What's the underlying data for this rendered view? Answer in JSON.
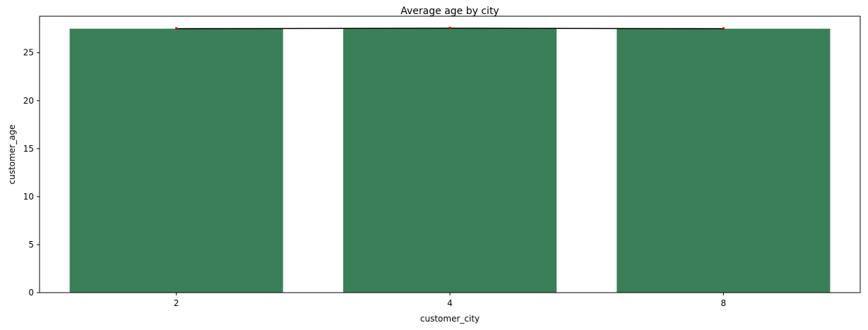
{
  "chart_data": {
    "type": "bar",
    "title": "Average age by city",
    "xlabel": "customer_city",
    "ylabel": "customer_age",
    "categories": [
      "2",
      "4",
      "8"
    ],
    "values": [
      27.5,
      27.55,
      27.5
    ],
    "line": {
      "values": [
        27.5,
        27.55,
        27.5
      ]
    },
    "error_bars": {
      "low": [
        27.4,
        27.45,
        27.4
      ],
      "high": [
        27.65,
        27.7,
        27.65
      ]
    },
    "yticks": [
      0,
      5,
      10,
      15,
      20,
      25
    ],
    "ylim": [
      0,
      28.8
    ],
    "grid": false,
    "legend": "none",
    "colors": {
      "bar": "#3b7f58",
      "line": "#000000",
      "error": "#d40000"
    }
  }
}
